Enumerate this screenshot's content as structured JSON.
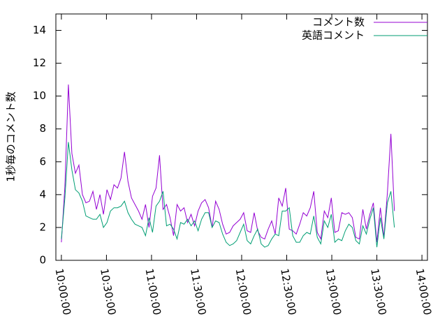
{
  "chart_data": {
    "type": "line",
    "ylabel": "1秒毎のコメント数",
    "legend": "top-right",
    "xlim": [
      35780,
      50620
    ],
    "xticks": [
      {
        "value": 36000,
        "label": "10:00:00"
      },
      {
        "value": 37800,
        "label": "10:30:00"
      },
      {
        "value": 39600,
        "label": "11:00:00"
      },
      {
        "value": 41400,
        "label": "11:30:00"
      },
      {
        "value": 43200,
        "label": "12:00:00"
      },
      {
        "value": 45000,
        "label": "12:30:00"
      },
      {
        "value": 46800,
        "label": "13:00:00"
      },
      {
        "value": 48600,
        "label": "13:30:00"
      },
      {
        "value": 50400,
        "label": "14:00:00"
      }
    ],
    "ylim": [
      0,
      15
    ],
    "yticks": [
      0,
      2,
      4,
      6,
      8,
      10,
      12,
      14
    ],
    "x": [
      36000,
      36140,
      36280,
      36420,
      36560,
      36700,
      36840,
      36980,
      37120,
      37260,
      37400,
      37540,
      37680,
      37820,
      37960,
      38100,
      38240,
      38380,
      38520,
      38660,
      38800,
      38940,
      39080,
      39220,
      39360,
      39500,
      39640,
      39780,
      39920,
      40060,
      40200,
      40340,
      40480,
      40620,
      40760,
      40900,
      41040,
      41180,
      41320,
      41460,
      41600,
      41740,
      41880,
      42020,
      42160,
      42300,
      42440,
      42580,
      42720,
      42860,
      43000,
      43140,
      43280,
      43420,
      43560,
      43700,
      43840,
      43980,
      44120,
      44260,
      44400,
      44540,
      44680,
      44820,
      44960,
      45100,
      45240,
      45380,
      45520,
      45660,
      45800,
      45940,
      46080,
      46220,
      46360,
      46500,
      46640,
      46780,
      46920,
      47060,
      47200,
      47340,
      47480,
      47620,
      47760,
      47900,
      48040,
      48180,
      48320,
      48460,
      48600,
      48740,
      48880,
      49020,
      49160,
      49300
    ],
    "series": [
      {
        "name": "コメント数",
        "color": "#9400d3",
        "values": [
          1.1,
          4.5,
          10.7,
          6.5,
          5.3,
          5.8,
          4.0,
          3.5,
          3.6,
          4.2,
          3.1,
          4.0,
          2.8,
          4.3,
          3.7,
          4.6,
          4.4,
          5.0,
          6.6,
          4.8,
          3.8,
          3.4,
          3.0,
          2.5,
          3.4,
          2.0,
          3.9,
          4.4,
          6.4,
          3.1,
          3.4,
          2.6,
          1.5,
          3.4,
          3.0,
          3.2,
          2.3,
          2.8,
          2.1,
          3.0,
          3.5,
          3.7,
          3.2,
          2.0,
          3.6,
          3.1,
          2.2,
          1.6,
          1.7,
          2.1,
          2.3,
          2.5,
          2.9,
          1.8,
          1.7,
          2.9,
          1.8,
          1.4,
          1.3,
          1.9,
          2.4,
          1.6,
          3.8,
          3.3,
          4.4,
          1.9,
          1.8,
          1.6,
          2.2,
          2.9,
          2.7,
          3.2,
          4.2,
          1.7,
          1.3,
          3.0,
          2.6,
          3.8,
          1.7,
          1.8,
          2.9,
          2.8,
          2.9,
          2.6,
          1.4,
          1.3,
          3.1,
          1.9,
          2.8,
          3.5,
          1.1,
          3.2,
          1.4,
          4.1,
          7.7,
          3.0
        ]
      },
      {
        "name": "英語コメント",
        "color": "#009e73",
        "values": [
          1.3,
          3.8,
          7.2,
          5.5,
          4.3,
          4.1,
          3.6,
          2.7,
          2.6,
          2.5,
          2.5,
          2.8,
          2.0,
          2.3,
          3.0,
          3.2,
          3.2,
          3.3,
          3.6,
          2.9,
          2.5,
          2.2,
          2.1,
          2.0,
          1.5,
          2.6,
          1.7,
          3.3,
          3.6,
          4.2,
          2.1,
          2.2,
          1.9,
          1.3,
          2.3,
          2.2,
          2.5,
          2.1,
          2.4,
          1.8,
          2.5,
          2.9,
          2.9,
          2.0,
          2.4,
          2.3,
          1.6,
          1.1,
          0.9,
          1.0,
          1.2,
          1.7,
          2.2,
          1.2,
          1.0,
          1.5,
          1.9,
          1.0,
          0.8,
          0.9,
          1.3,
          1.6,
          1.5,
          3.0,
          3.0,
          3.2,
          1.5,
          1.1,
          1.1,
          1.5,
          1.7,
          1.6,
          2.7,
          1.4,
          1.0,
          2.4,
          2.0,
          2.8,
          1.1,
          1.3,
          1.2,
          1.8,
          2.2,
          2.0,
          1.2,
          1.0,
          2.1,
          1.6,
          2.5,
          3.2,
          0.8,
          2.6,
          1.3,
          3.5,
          4.2,
          2.0
        ]
      }
    ]
  }
}
